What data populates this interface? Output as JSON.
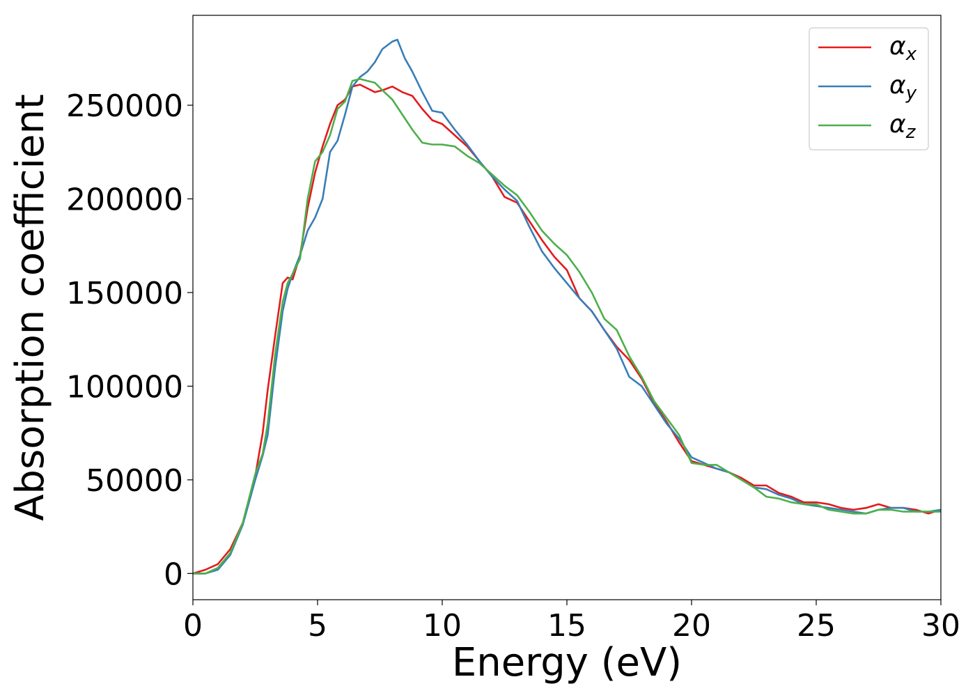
{
  "chart_data": {
    "type": "line",
    "xlabel": "Energy (eV)",
    "ylabel": "Absorption coefficient",
    "xlim": [
      0,
      30
    ],
    "ylim": [
      -14000,
      298000
    ],
    "x_ticks": [
      0,
      5,
      10,
      15,
      20,
      25,
      30
    ],
    "y_ticks": [
      0,
      50000,
      100000,
      150000,
      200000,
      250000
    ],
    "grid": false,
    "legend_position": "top-right",
    "series": [
      {
        "name": "α_x",
        "label_main": "α",
        "label_sub": "x",
        "color": "#e41a1c",
        "x": [
          0,
          0.5,
          1,
          1.5,
          2,
          2.5,
          2.8,
          3,
          3.3,
          3.6,
          3.8,
          4.0,
          4.3,
          4.6,
          4.9,
          5.2,
          5.5,
          5.8,
          6.1,
          6.4,
          6.7,
          7.0,
          7.3,
          7.6,
          8.0,
          8.4,
          8.8,
          9.2,
          9.6,
          10.0,
          10.5,
          11.0,
          11.5,
          12.0,
          12.5,
          13.0,
          13.5,
          14.0,
          14.5,
          15.0,
          15.5,
          16.0,
          16.5,
          17.0,
          17.5,
          18.0,
          18.5,
          19.0,
          19.5,
          20.0,
          20.5,
          21.0,
          21.5,
          22.0,
          22.5,
          23.0,
          23.5,
          24.0,
          24.5,
          25.0,
          25.5,
          26.0,
          26.5,
          27.0,
          27.5,
          28.0,
          28.5,
          29.0,
          29.5,
          30.0
        ],
        "y": [
          0,
          2000,
          5000,
          13000,
          27000,
          52000,
          75000,
          98000,
          127000,
          155000,
          158000,
          157000,
          170000,
          195000,
          214000,
          228000,
          240000,
          250000,
          253000,
          260000,
          261000,
          259000,
          257000,
          258000,
          260000,
          257000,
          255000,
          248000,
          242000,
          240000,
          234000,
          228000,
          220000,
          212000,
          201000,
          198000,
          188000,
          178000,
          169000,
          162000,
          147000,
          140000,
          130000,
          121000,
          114000,
          104000,
          91000,
          81000,
          70000,
          60000,
          58000,
          56000,
          54000,
          51000,
          47000,
          47000,
          43000,
          41000,
          38000,
          38000,
          37000,
          35000,
          34000,
          35000,
          37000,
          35000,
          35000,
          34000,
          32000,
          34000
        ]
      },
      {
        "name": "α_y",
        "label_main": "α",
        "label_sub": "y",
        "color": "#377eb8",
        "x": [
          0,
          0.5,
          1,
          1.5,
          2,
          2.5,
          2.8,
          3,
          3.3,
          3.6,
          3.8,
          4.0,
          4.3,
          4.6,
          4.9,
          5.2,
          5.5,
          5.8,
          6.1,
          6.4,
          6.7,
          7.0,
          7.3,
          7.6,
          8.0,
          8.2,
          8.5,
          8.8,
          9.2,
          9.6,
          10.0,
          10.5,
          11.0,
          11.5,
          12.0,
          12.5,
          13.0,
          13.5,
          14.0,
          14.5,
          15.0,
          15.5,
          16.0,
          16.5,
          17.0,
          17.5,
          18.0,
          18.5,
          19.0,
          19.5,
          20.0,
          20.5,
          21.0,
          21.5,
          22.0,
          22.5,
          23.0,
          23.5,
          24.0,
          24.5,
          25.0,
          25.5,
          26.0,
          26.5,
          27.0,
          27.5,
          28.0,
          28.5,
          29.0,
          29.5,
          30.0
        ],
        "y": [
          0,
          0,
          2000,
          10000,
          26000,
          50000,
          63000,
          74000,
          110000,
          140000,
          152000,
          160000,
          170000,
          183000,
          190000,
          200000,
          225000,
          231000,
          245000,
          260000,
          265000,
          268000,
          273000,
          280000,
          284000,
          285000,
          275000,
          268000,
          257000,
          247000,
          246000,
          237000,
          229000,
          220000,
          212000,
          205000,
          199000,
          185000,
          172000,
          163000,
          155000,
          147000,
          140000,
          130000,
          120000,
          105000,
          100000,
          90000,
          80000,
          72000,
          62000,
          59000,
          56000,
          54000,
          50000,
          46000,
          45000,
          42000,
          40000,
          37000,
          36000,
          35000,
          34000,
          33000,
          32000,
          34000,
          35000,
          35000,
          33000,
          33000,
          34000
        ]
      },
      {
        "name": "α_z",
        "label_main": "α",
        "label_sub": "z",
        "color": "#4daf4a",
        "x": [
          0,
          0.5,
          1,
          1.5,
          2,
          2.5,
          2.8,
          3,
          3.3,
          3.6,
          3.8,
          4.0,
          4.3,
          4.6,
          4.9,
          5.2,
          5.5,
          5.8,
          6.1,
          6.4,
          6.7,
          7.0,
          7.3,
          7.6,
          8.0,
          8.4,
          8.8,
          9.2,
          9.6,
          10.0,
          10.5,
          11.0,
          11.5,
          12.0,
          12.5,
          13.0,
          13.5,
          14.0,
          14.5,
          15.0,
          15.5,
          16.0,
          16.5,
          17.0,
          17.5,
          18.0,
          18.5,
          19.0,
          19.5,
          20.0,
          20.5,
          21.0,
          21.5,
          22.0,
          22.5,
          23.0,
          23.5,
          24.0,
          24.5,
          25.0,
          25.5,
          26.0,
          26.5,
          27.0,
          27.5,
          28.0,
          28.5,
          29.0,
          29.5,
          30.0
        ],
        "y": [
          0,
          0,
          3000,
          11000,
          27000,
          53000,
          64000,
          80000,
          117000,
          145000,
          155000,
          160000,
          168000,
          200000,
          220000,
          225000,
          234000,
          248000,
          252000,
          263000,
          264000,
          263000,
          262000,
          258000,
          253000,
          245000,
          237000,
          230000,
          229000,
          229000,
          228000,
          223000,
          219000,
          213000,
          207000,
          202000,
          193000,
          183000,
          176000,
          170000,
          161000,
          150000,
          136000,
          130000,
          116000,
          105000,
          92000,
          83000,
          74000,
          59000,
          58000,
          58000,
          54000,
          50000,
          46000,
          41000,
          40000,
          38000,
          37000,
          37000,
          34000,
          33000,
          32000,
          32000,
          34000,
          34000,
          33000,
          33000,
          33000,
          33000
        ]
      }
    ]
  }
}
